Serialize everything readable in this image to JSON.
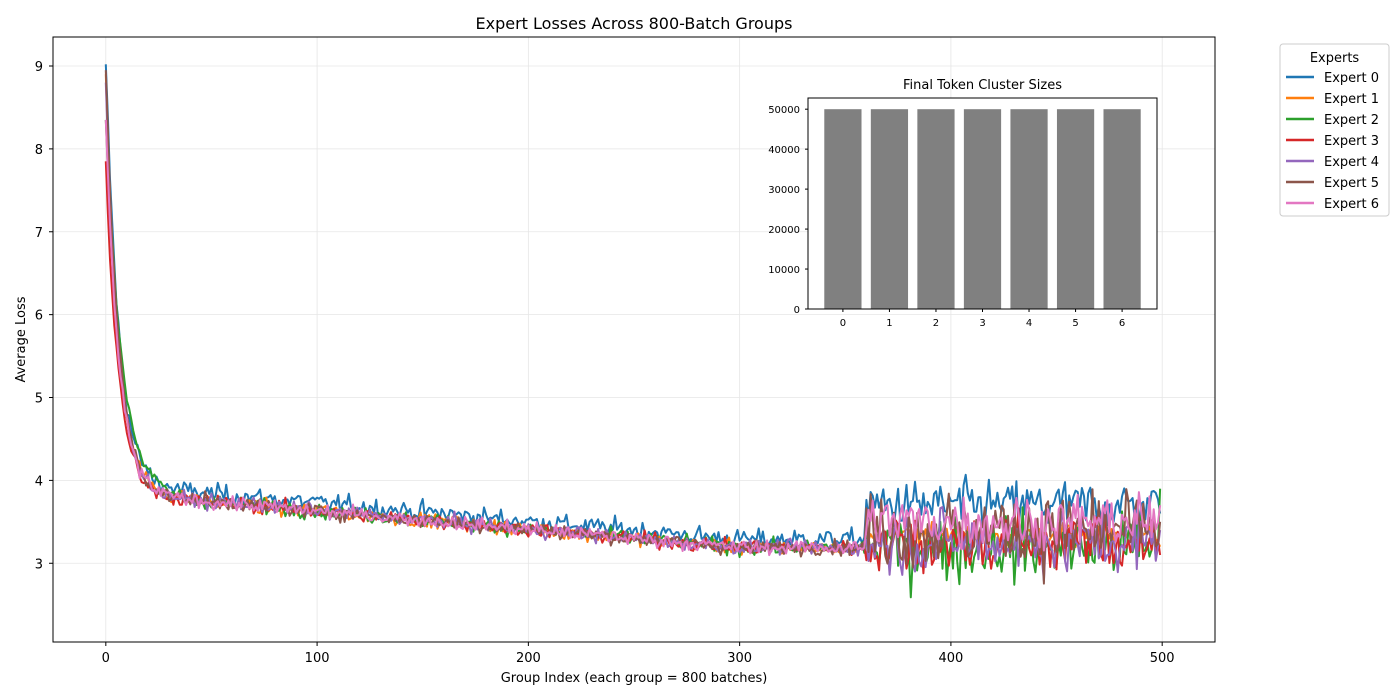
{
  "chart_data": [
    {
      "type": "line",
      "title": "Expert Losses Across 800-Batch Groups",
      "xlabel": "Group Index (each group = 800 batches)",
      "ylabel": "Average Loss",
      "xlim": [
        -25,
        525
      ],
      "ylim": [
        2.05,
        9.35
      ],
      "xticks": [
        0,
        100,
        200,
        300,
        400,
        500
      ],
      "yticks": [
        3,
        4,
        5,
        6,
        7,
        8,
        9
      ],
      "grid": true,
      "legend_title": "Experts",
      "legend_position": "outside-top-right",
      "series": [
        {
          "name": "Expert 0",
          "color": "#1f77b4",
          "start": 9.02,
          "plateau": 3.5,
          "late": [
            3.1,
            4.3
          ],
          "final": 3.6
        },
        {
          "name": "Expert 1",
          "color": "#ff7f0e",
          "start": 8.9,
          "plateau": 3.4,
          "late": [
            3.1,
            3.6
          ],
          "final": 3.2
        },
        {
          "name": "Expert 2",
          "color": "#2ca02c",
          "start": 8.35,
          "plateau": 3.4,
          "late": [
            2.4,
            4.0
          ],
          "final": 3.9
        },
        {
          "name": "Expert 3",
          "color": "#d62728",
          "start": 7.85,
          "plateau": 3.4,
          "late": [
            2.5,
            4.0
          ],
          "final": 3.1
        },
        {
          "name": "Expert 4",
          "color": "#9467bd",
          "start": 8.8,
          "plateau": 3.4,
          "late": [
            2.5,
            4.0
          ],
          "final": 3.4
        },
        {
          "name": "Expert 5",
          "color": "#8c564b",
          "start": 8.95,
          "plateau": 3.4,
          "late": [
            2.5,
            4.3
          ],
          "final": 3.5
        },
        {
          "name": "Expert 6",
          "color": "#e377c2",
          "start": 8.35,
          "plateau": 3.4,
          "late": [
            2.9,
            4.1
          ],
          "final": 3.7
        }
      ],
      "n_points": 500
    },
    {
      "type": "bar",
      "title": "Final Token Cluster Sizes",
      "categories": [
        "0",
        "1",
        "2",
        "3",
        "4",
        "5",
        "6"
      ],
      "values": [
        50000,
        50000,
        50000,
        50000,
        50000,
        50000,
        50000
      ],
      "ylim": [
        0,
        52800
      ],
      "yticks": [
        0,
        10000,
        20000,
        30000,
        40000,
        50000
      ],
      "bar_color": "#808080"
    }
  ]
}
